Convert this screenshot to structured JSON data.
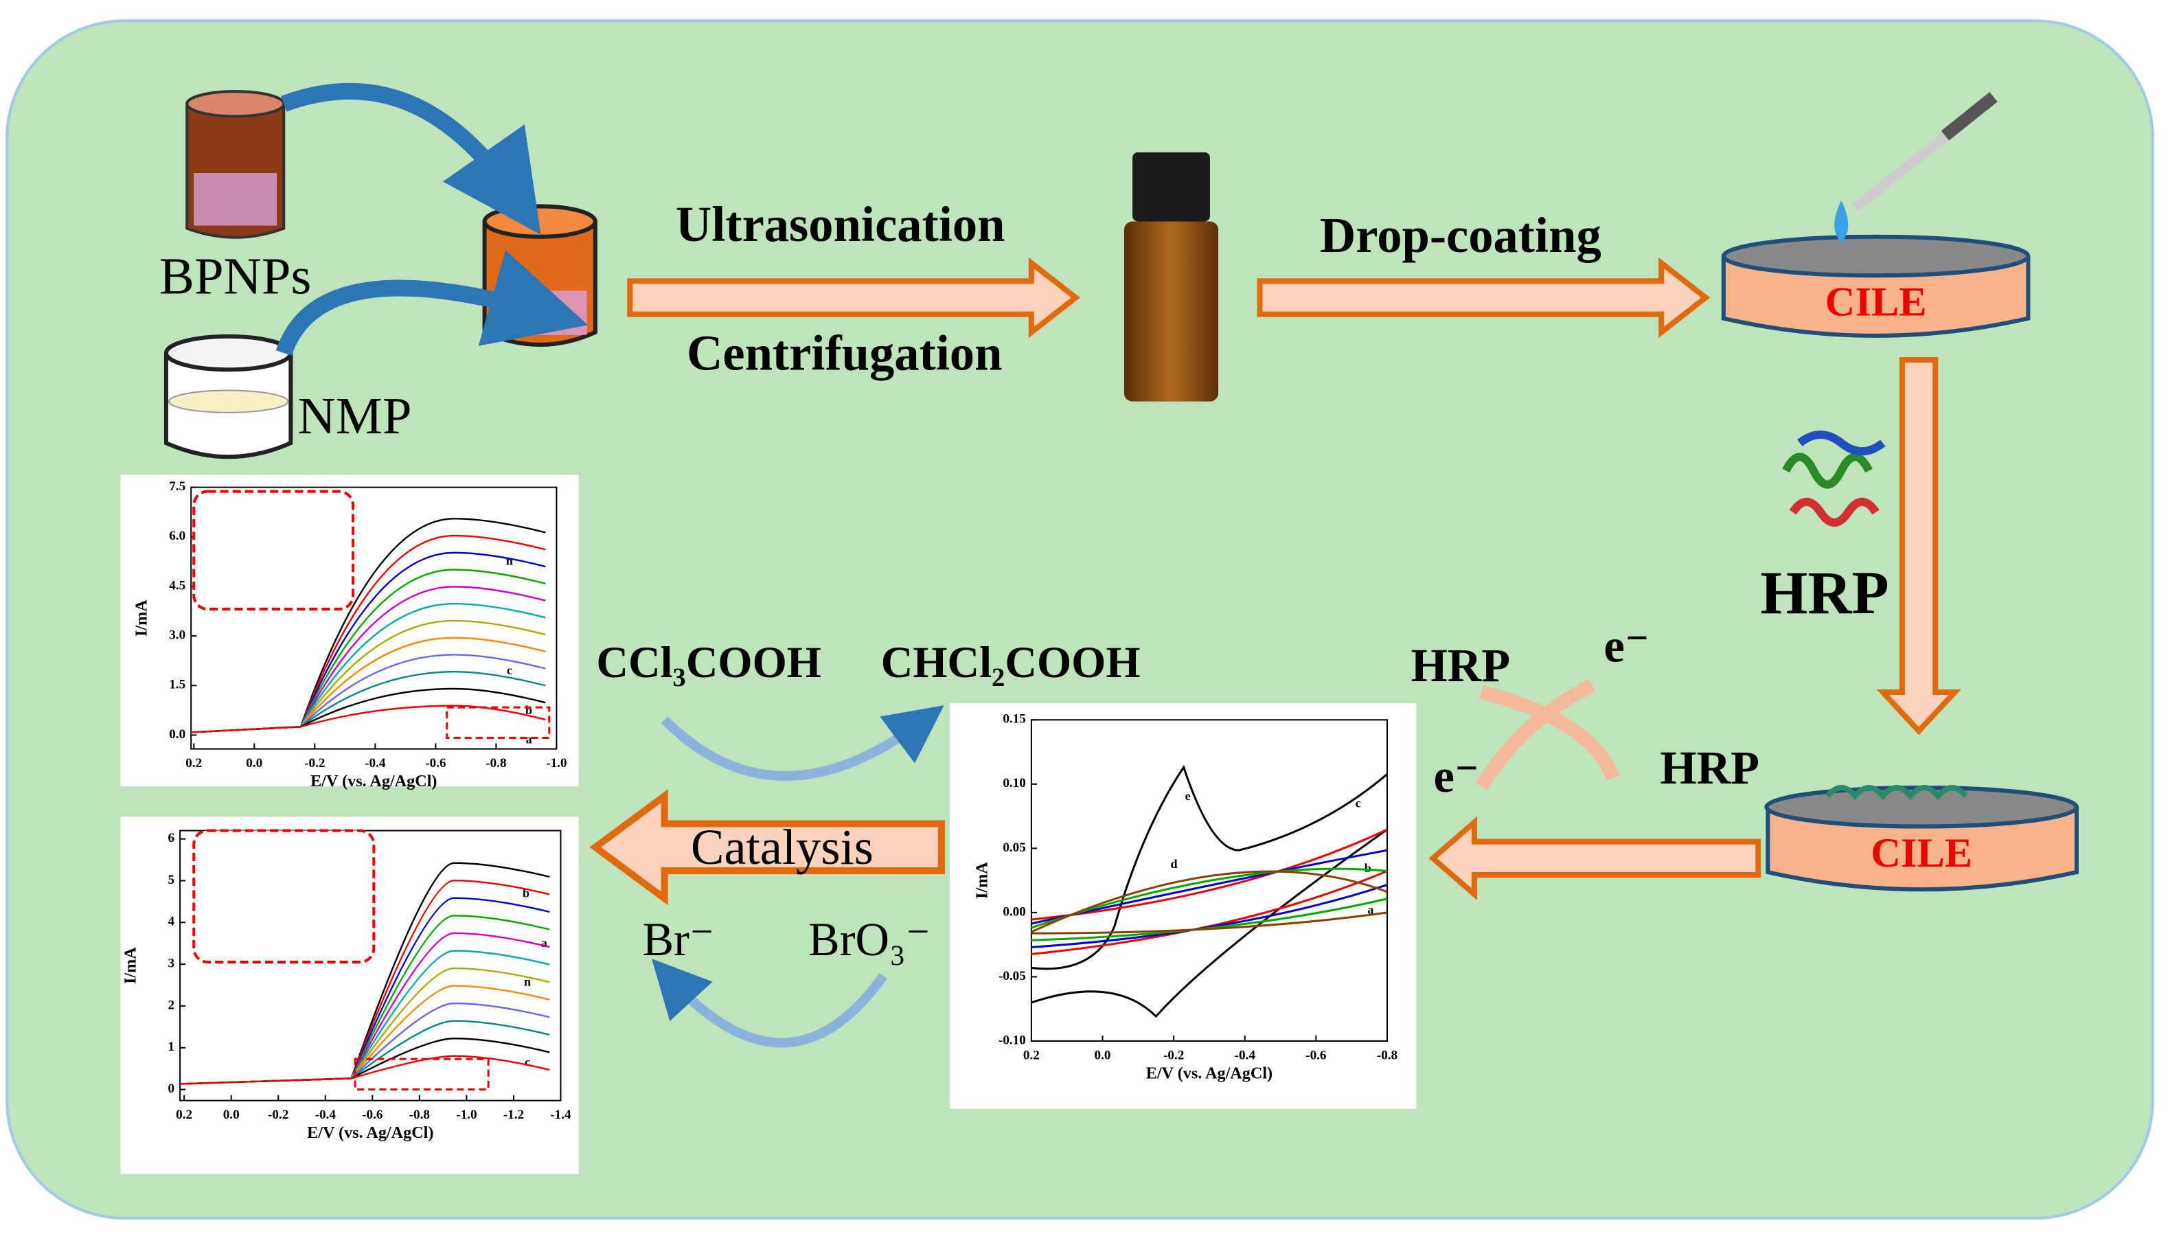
{
  "preparation": {
    "precursor": "BPNPs",
    "solvent": "NMP",
    "step1_top": "Ultrasonication",
    "step1_bottom": "Centrifugation",
    "step2": "Drop-coating",
    "electrode_top": "CILE"
  },
  "modification": {
    "enzyme": "HRP",
    "electrode_bottom": "CILE"
  },
  "electron_transfer": {
    "hrp_left": "HRP",
    "e_top": "e⁻",
    "e_left": "e⁻",
    "hrp_right": "HRP"
  },
  "catalysis": {
    "label": "Catalysis",
    "substrate_1": "CCl₃COOH",
    "product_1": "CHCl₂COOH",
    "substrate_2": "Br⁻",
    "product_2": "BrO₃⁻"
  },
  "plots": [
    {
      "y_label": "I/mA",
      "x_label": "E/V (vs. Ag/AgCl)",
      "yticks": [
        "0.0",
        "1.5",
        "3.0",
        "4.5",
        "6.0",
        "7.5"
      ],
      "xticks": [
        "0.2",
        "0.0",
        "-0.2",
        "-0.4",
        "-0.6",
        "-0.8",
        "-1.0"
      ],
      "curve_labels": [
        "n",
        "c",
        "b",
        "a"
      ]
    },
    {
      "y_label": "I/mA",
      "x_label": "E/V (vs. Ag/AgCl)",
      "yticks": [
        "0",
        "1",
        "2",
        "3",
        "4",
        "5",
        "6"
      ],
      "xticks": [
        "0.2",
        "0.0",
        "-0.2",
        "-0.4",
        "-0.6",
        "-0.8",
        "-1.0",
        "-1.2",
        "-1.4"
      ],
      "curve_labels": [
        "b",
        "a",
        "n",
        "c"
      ]
    },
    {
      "y_label": "I/mA",
      "x_label": "E/V (vs. Ag/AgCl)",
      "yticks": [
        "-0.10",
        "-0.05",
        "0.00",
        "0.05",
        "0.10",
        "0.15"
      ],
      "xticks": [
        "0.2",
        "0.0",
        "-0.2",
        "-0.4",
        "-0.6",
        "-0.8"
      ],
      "curve_labels": [
        "e",
        "d",
        "c",
        "b",
        "a"
      ]
    }
  ]
}
